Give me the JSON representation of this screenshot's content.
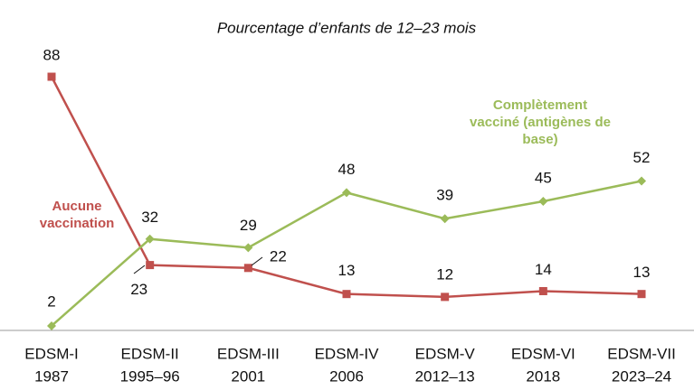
{
  "chart_data": {
    "type": "line",
    "title": "Pourcentage d’enfants de 12–23 mois",
    "categories": [
      [
        "EDSM-I",
        "1987"
      ],
      [
        "EDSM-II",
        "1995–96"
      ],
      [
        "EDSM-III",
        "2001"
      ],
      [
        "EDSM-IV",
        "2006"
      ],
      [
        "EDSM-V",
        "2012–13"
      ],
      [
        "EDSM-VI",
        "2018"
      ],
      [
        "EDSM-VII",
        "2023–24"
      ]
    ],
    "ylim": [
      0,
      100
    ],
    "series": [
      {
        "name": "Aucune vaccination",
        "color": "#c0504d",
        "marker": "square",
        "values": [
          88,
          23,
          22,
          13,
          12,
          14,
          13
        ]
      },
      {
        "name": "Complètement vacciné (antigènes de base)",
        "color": "#9bbb59",
        "marker": "diamond",
        "values": [
          2,
          32,
          29,
          48,
          39,
          45,
          52
        ]
      }
    ]
  }
}
